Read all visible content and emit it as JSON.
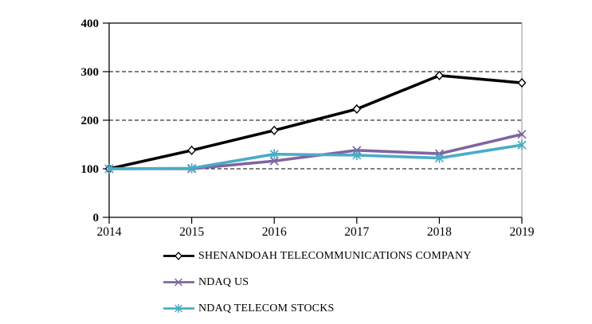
{
  "chart_data": {
    "type": "line",
    "title": "",
    "xlabel": "",
    "ylabel": "",
    "categories": [
      "2014",
      "2015",
      "2016",
      "2017",
      "2018",
      "2019"
    ],
    "series": [
      {
        "name": "SHENANDOAH TELECOMMUNICATIONS COMPANY",
        "values": [
          100,
          138,
          179,
          223,
          292,
          277
        ],
        "color": "#000000",
        "marker": "diamond"
      },
      {
        "name": "NDAQ US",
        "values": [
          100,
          100,
          116,
          138,
          131,
          171
        ],
        "color": "#8064A2",
        "marker": "x"
      },
      {
        "name": "NDAQ TELECOM STOCKS",
        "values": [
          100,
          101,
          130,
          128,
          122,
          149
        ],
        "color": "#4BACC6",
        "marker": "asterisk"
      }
    ],
    "ylim": [
      0,
      400
    ],
    "y_ticks": [
      "0",
      "100",
      "200",
      "300",
      "400"
    ],
    "grid": "horizontal-dashed",
    "legend_position": "bottom-left",
    "axis_color": "#000000",
    "plot_border_color": "#a6a6a6"
  }
}
